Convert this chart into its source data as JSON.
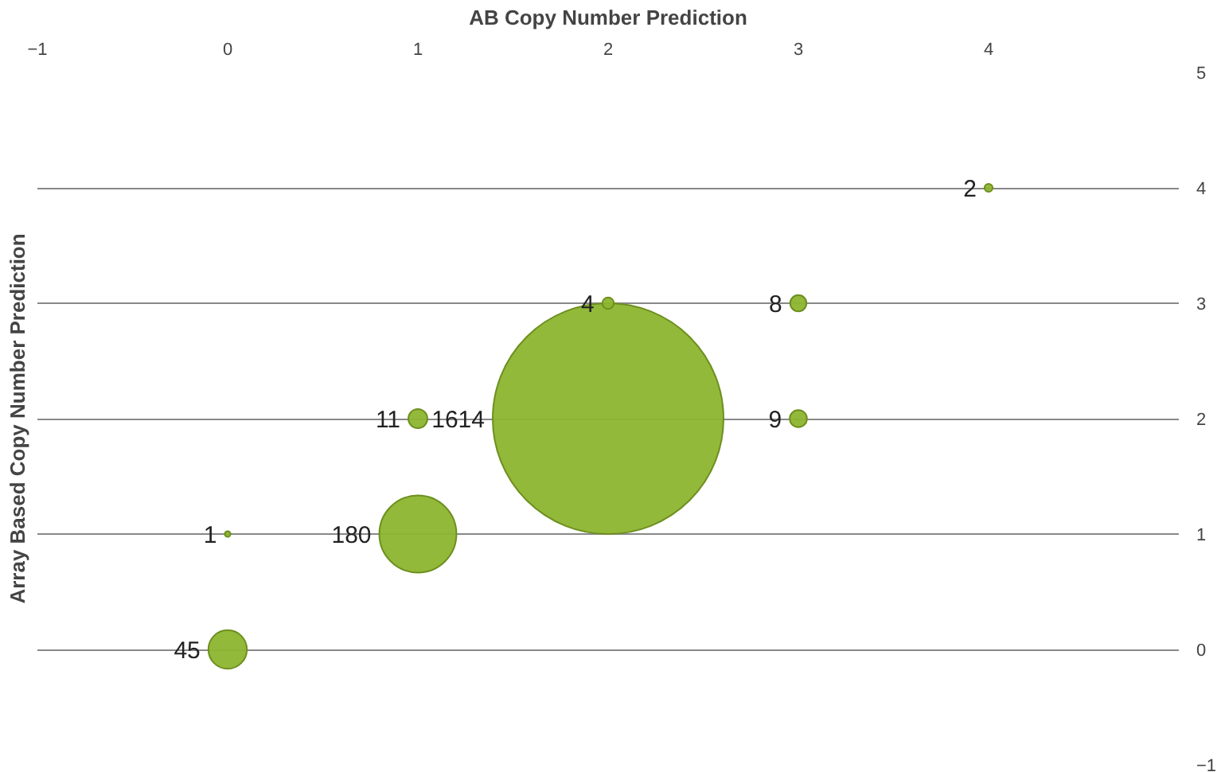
{
  "chart_data": {
    "type": "bubble",
    "xlabel": "AB Copy Number Prediction",
    "ylabel": "Array Based Copy Number Prediction",
    "x": [
      0,
      0,
      1,
      1,
      2,
      2,
      3,
      3,
      4
    ],
    "values": [
      0,
      1,
      1,
      2,
      2,
      3,
      3,
      2,
      4
    ],
    "sizes": [
      45,
      1,
      180,
      11,
      1614,
      4,
      8,
      9,
      2
    ],
    "value_labels": [
      "45",
      "1",
      "180",
      "11",
      "1614",
      "4",
      "8",
      "9",
      "2"
    ],
    "color": "#8db52f",
    "xlim": [
      -1,
      5
    ],
    "xticks": [
      -1,
      0,
      1,
      2,
      3,
      4
    ],
    "ylim": [
      -1,
      5
    ],
    "yticks": [
      -1,
      0,
      1,
      2,
      3,
      4,
      5
    ],
    "grid": "y"
  }
}
